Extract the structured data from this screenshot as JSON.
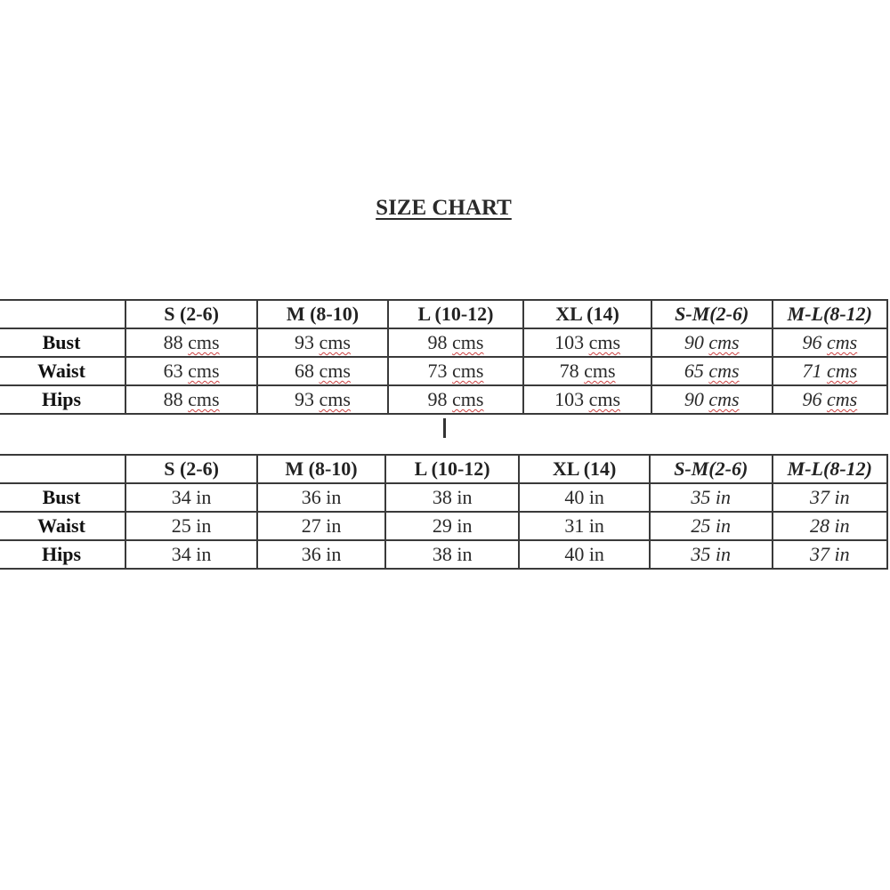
{
  "title": "SIZE CHART",
  "cm_table": {
    "headers": [
      "",
      "S (2-6)",
      "M (8-10)",
      "L (10-12)",
      "XL (14)",
      "S-M(2-6)",
      "M-L(8-12)"
    ],
    "unit": "cms",
    "rows": [
      {
        "label": "Bust",
        "values": [
          "88",
          "93",
          "98",
          "103",
          "90",
          "96"
        ]
      },
      {
        "label": "Waist",
        "values": [
          "63",
          "68",
          "73",
          "78",
          "65",
          "71"
        ]
      },
      {
        "label": "Hips",
        "values": [
          "88",
          "93",
          "98",
          "103",
          "90",
          "96"
        ]
      }
    ]
  },
  "inch_table": {
    "headers": [
      "",
      "S (2-6)",
      "M (8-10)",
      "L (10-12)",
      "XL (14)",
      "S-M(2-6)",
      "M-L(8-12)"
    ],
    "unit": "in",
    "rows": [
      {
        "label": "Bust",
        "values": [
          "34",
          "36",
          "38",
          "40",
          "35",
          "37"
        ]
      },
      {
        "label": "Waist",
        "values": [
          "25",
          "27",
          "29",
          "31",
          "25",
          "28"
        ]
      },
      {
        "label": "Hips",
        "values": [
          "34",
          "36",
          "38",
          "40",
          "35",
          "37"
        ]
      }
    ]
  }
}
